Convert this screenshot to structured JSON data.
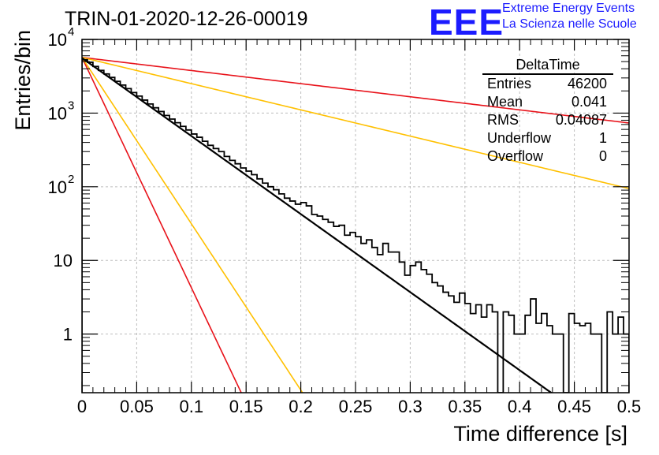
{
  "page_title": "TRIN-01-2020-12-26-00019",
  "logo": {
    "text": "EEE",
    "line1": "Extreme Energy Events",
    "line2": "La Scienza nelle Scuole"
  },
  "stats": {
    "title": "DeltaTime",
    "rows": [
      {
        "label": "Entries",
        "value": "46200"
      },
      {
        "label": "Mean",
        "value": "0.041"
      },
      {
        "label": "RMS",
        "value": "0.04087"
      },
      {
        "label": "Underflow",
        "value": "1"
      },
      {
        "label": "Overflow",
        "value": "0"
      }
    ]
  },
  "colors": {
    "histogram": "#000000",
    "fit": "#000000",
    "red_band": "#e8121a",
    "orange_band": "#ffc000",
    "grid": "#bdbdbd"
  },
  "chart_data": {
    "type": "line",
    "title": "TRIN-01-2020-12-26-00019",
    "xlabel": "Time difference [s]",
    "ylabel": "Entries/bin",
    "xlim": [
      0,
      0.5
    ],
    "ylim": [
      0.16,
      10000
    ],
    "yscale": "log",
    "grid": true,
    "legend": "top-right",
    "x_ticks": [
      "0",
      "0.05",
      "0.1",
      "0.15",
      "0.2",
      "0.25",
      "0.3",
      "0.35",
      "0.4",
      "0.45",
      "0.5"
    ],
    "x_tick_values": [
      0,
      0.05,
      0.1,
      0.15,
      0.2,
      0.25,
      0.3,
      0.35,
      0.4,
      0.45,
      0.5
    ],
    "y_ticks": [
      {
        "value": 1,
        "label": "1"
      },
      {
        "value": 10,
        "label": "10"
      },
      {
        "value": 100,
        "label": "10",
        "exp": "2"
      },
      {
        "value": 1000,
        "label": "10",
        "exp": "3"
      },
      {
        "value": 10000,
        "label": "10",
        "exp": "4"
      }
    ],
    "histogram": {
      "bin_width": 0.005,
      "values": [
        5300,
        4900,
        4300,
        3800,
        3400,
        3050,
        2700,
        2400,
        2150,
        1900,
        1700,
        1500,
        1330,
        1180,
        1050,
        930,
        830,
        740,
        660,
        590,
        520,
        470,
        415,
        365,
        330,
        300,
        258,
        228,
        205,
        180,
        163,
        146,
        128,
        112,
        100,
        91,
        80,
        70,
        64,
        58,
        61,
        55,
        42,
        40,
        36,
        33,
        29,
        30,
        22,
        24,
        21,
        17,
        19,
        15,
        12,
        17,
        13,
        13,
        9.5,
        6.3,
        8.5,
        9.5,
        7.5,
        6.5,
        5.0,
        4.5,
        3.7,
        3.3,
        2.7,
        3.6,
        2.6,
        1.9,
        2.5,
        1.7,
        2.5,
        2.0,
        0.16,
        2.0,
        1.8,
        1.0,
        1.0,
        1.8,
        3.0,
        1.4,
        1.9,
        1.3,
        1.0,
        1.0,
        0.16,
        1.9,
        1.4,
        1.3,
        1.4,
        1.0,
        1.0,
        0.16,
        2.0,
        1.0,
        1.7,
        1.0,
        0.16,
        2.0,
        1.6,
        1.0,
        0.16,
        0.16,
        1.0,
        1.0,
        1.0,
        1.0,
        1.0,
        1.0,
        0.16,
        0.16,
        0.16,
        0.16,
        0.16,
        0.16,
        0.16,
        0.16
      ]
    },
    "series": [
      {
        "kind": "fit",
        "x0": 0,
        "y0": 5600,
        "slope_per_s": -24.4,
        "color": "#000000",
        "width": 2.2
      },
      {
        "kind": "band",
        "x0": 0,
        "y0": 5700,
        "slope_per_s": -4.1,
        "color": "#e8121a",
        "width": 1.6
      },
      {
        "kind": "band",
        "x0": 0,
        "y0": 5700,
        "slope_per_s": -8.2,
        "color": "#ffc000",
        "width": 1.6
      },
      {
        "kind": "band",
        "x0": 0,
        "y0": 5700,
        "slope_per_s": -72,
        "color": "#e8121a",
        "width": 1.6
      },
      {
        "kind": "band",
        "x0": 0,
        "y0": 5700,
        "slope_per_s": -52,
        "color": "#ffc000",
        "width": 1.6
      }
    ]
  }
}
